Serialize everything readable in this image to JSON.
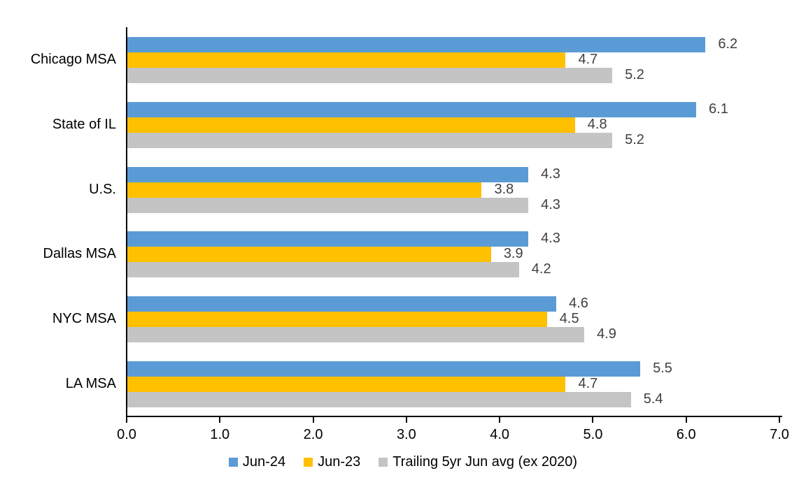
{
  "chart_data": {
    "type": "bar",
    "orientation": "horizontal",
    "title": "",
    "categories": [
      "Chicago MSA",
      "State of IL",
      "U.S.",
      "Dallas MSA",
      "NYC MSA",
      "LA MSA"
    ],
    "series": [
      {
        "name": "Jun-24",
        "color": "#5B9BD5",
        "values": [
          6.2,
          6.1,
          4.3,
          4.3,
          4.6,
          5.5
        ]
      },
      {
        "name": "Jun-23",
        "color": "#FFC000",
        "values": [
          4.7,
          4.8,
          3.8,
          3.9,
          4.5,
          4.7
        ]
      },
      {
        "name": "Trailing 5yr Jun avg (ex 2020)",
        "color": "#C4C4C4",
        "values": [
          5.2,
          5.2,
          4.3,
          4.2,
          4.9,
          5.4
        ]
      }
    ],
    "xlabel": "",
    "ylabel": "",
    "xlim": [
      0,
      7
    ],
    "x_ticks": [
      "0.0",
      "1.0",
      "2.0",
      "3.0",
      "4.0",
      "5.0",
      "6.0",
      "7.0"
    ],
    "grid": false,
    "legend_position": "bottom",
    "value_labels_shown": true,
    "value_label_color": "#404040",
    "axis_color": "#000000"
  }
}
